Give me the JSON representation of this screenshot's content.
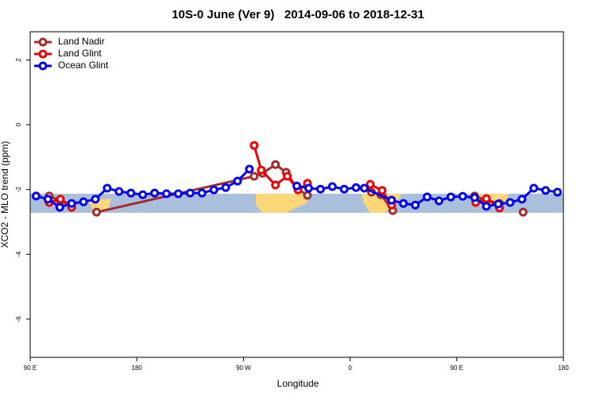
{
  "chart_data": {
    "type": "line",
    "title": "10S-0 June (Ver 9)   2014-09-06 to 2018-12-31",
    "xlabel": "Longitude",
    "ylabel": "XCO2 - MLO trend (ppm)",
    "xlim": [
      90,
      540
    ],
    "ylim": [
      -7.18,
      2.87
    ],
    "xticks": [
      {
        "value": 90,
        "label": "90 E"
      },
      180,
      {
        "value": 270,
        "label": "90 W"
      },
      {
        "value": 360,
        "label": "0"
      },
      {
        "value": 450,
        "label": "90 E"
      },
      {
        "value": 540,
        "label": "180"
      }
    ],
    "yticks": [
      2,
      0,
      -2,
      -4,
      -6
    ],
    "legend": "top-left",
    "series": [
      {
        "name": "Land Nadir",
        "color": "#a52a2a",
        "x": [
          106,
          115.5,
          125,
          135,
          146,
          279,
          286,
          297,
          306,
          316,
          324,
          350,
          378,
          386,
          396,
          430,
          465,
          475,
          486,
          495,
          506
        ],
        "values": [
          -2.2,
          -2.35,
          -2.45,
          null,
          -2.7,
          -1.59,
          -1.5,
          -1.23,
          -1.47,
          -1.99,
          -2.18,
          null,
          -2.08,
          -2.16,
          -2.65,
          null,
          -2.2,
          -2.33,
          -2.43,
          null,
          -2.7
        ]
      },
      {
        "name": "Land Glint",
        "color": "#ee0000",
        "x": [
          106,
          115.5,
          125,
          200,
          279,
          285,
          297,
          307,
          316,
          324,
          350,
          377,
          387,
          395,
          430,
          466,
          475,
          486
        ],
        "values": [
          -2.4,
          -2.3,
          -2.55,
          null,
          -0.64,
          -1.4,
          -1.86,
          -1.59,
          -2.01,
          -1.81,
          null,
          -1.84,
          -2.03,
          -2.48,
          null,
          -2.4,
          -2.28,
          -2.57
        ]
      },
      {
        "name": "Ocean Glint",
        "color": "#0000ee",
        "x": [
          95,
          105,
          115,
          125,
          135,
          145,
          155,
          165,
          175,
          185,
          195,
          205,
          215,
          225,
          235,
          245,
          255,
          265,
          275,
          295,
          315,
          325,
          335,
          345,
          355,
          365,
          372,
          395,
          405,
          415,
          425,
          435,
          445,
          455,
          465,
          475,
          485,
          495,
          505,
          515,
          525,
          535
        ],
        "values": [
          -2.2,
          -2.3,
          -2.55,
          -2.43,
          -2.38,
          -2.3,
          -1.96,
          -2.06,
          -2.11,
          -2.16,
          -2.11,
          -2.13,
          -2.13,
          -2.11,
          -2.11,
          -2.01,
          -1.94,
          -1.74,
          -1.37,
          null,
          -1.89,
          -1.96,
          -1.99,
          -1.91,
          -1.99,
          -1.94,
          -1.96,
          -2.33,
          -2.43,
          -2.48,
          -2.23,
          -2.35,
          -2.23,
          -2.21,
          -2.25,
          -2.52,
          -2.45,
          -2.4,
          -2.3,
          -1.96,
          -2.03,
          -2.08
        ]
      }
    ]
  }
}
